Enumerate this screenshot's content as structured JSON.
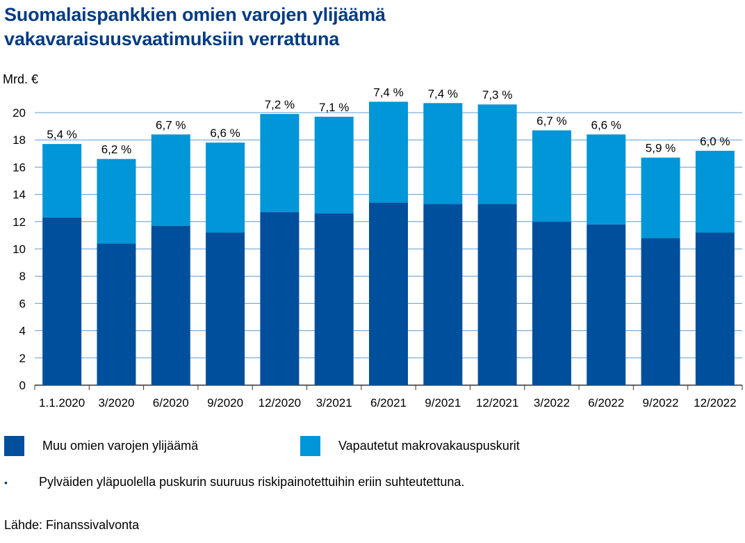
{
  "title": {
    "line1": "Suomalaispankkien omien varojen ylijäämä",
    "line2": "vakavaraisuusvaatimuksiin verrattuna"
  },
  "chart_data": {
    "type": "bar",
    "stacked": true,
    "ylabel": "Mrd. €",
    "ylim": [
      0,
      21
    ],
    "yticks": [
      0,
      2,
      4,
      6,
      8,
      10,
      12,
      14,
      16,
      18,
      20
    ],
    "grid": true,
    "categories": [
      "1.1.2020",
      "3/2020",
      "6/2020",
      "9/2020",
      "12/2020",
      "3/2021",
      "6/2021",
      "9/2021",
      "12/2021",
      "3/2022",
      "6/2022",
      "9/2022",
      "12/2022"
    ],
    "series": [
      {
        "name": "Muu omien varojen ylijäämä",
        "color": "#004f9c",
        "values": [
          12.3,
          10.4,
          11.7,
          11.2,
          12.7,
          12.6,
          13.4,
          13.3,
          13.3,
          12.0,
          11.8,
          10.8,
          11.2
        ]
      },
      {
        "name": "Vapautetut makrovakauspuskurit",
        "color": "#0096d7",
        "values": [
          5.4,
          6.2,
          6.7,
          6.6,
          7.2,
          7.1,
          7.4,
          7.4,
          7.3,
          6.7,
          6.6,
          5.9,
          6.0
        ]
      }
    ],
    "bar_labels": [
      "5,4 %",
      "6,2 %",
      "6,7 %",
      "6,6 %",
      "7,2 %",
      "7,1 %",
      "7,4 %",
      "7,4 %",
      "7,3 %",
      "6,7 %",
      "6,6 %",
      "5,9 %",
      "6,0 %"
    ],
    "legend": {
      "placement": "bottom",
      "items": [
        {
          "label": "Muu omien varojen ylijäämä",
          "color": "#004f9c"
        },
        {
          "label": "Vapautetut makrovakauspuskurit",
          "color": "#0096d7"
        }
      ]
    }
  },
  "note": "Pylväiden yläpuolella puskurin suuruus riskipainotettuihin eriin suhteutettuna.",
  "bullet": "•",
  "source": "Lähde: Finanssivalvonta",
  "colors": {
    "title": "#003b83",
    "grid": "#5b9bd5",
    "axis": "#333333"
  }
}
